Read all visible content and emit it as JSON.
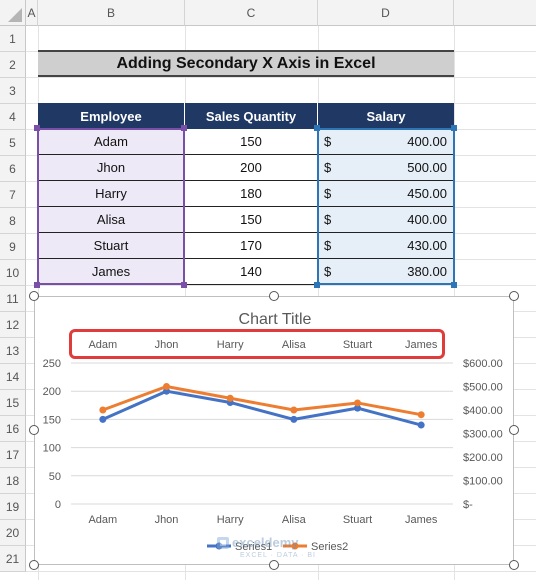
{
  "sheet": {
    "columns": [
      "A",
      "B",
      "C",
      "D"
    ],
    "rows": [
      "1",
      "2",
      "3",
      "4",
      "5",
      "6",
      "7",
      "8",
      "9",
      "10",
      "11",
      "12",
      "13",
      "14",
      "15",
      "16",
      "17",
      "18",
      "19",
      "20",
      "21"
    ],
    "title": "Adding Secondary X Axis in Excel"
  },
  "table": {
    "headers": [
      "Employee",
      "Sales  Quantity",
      "Salary"
    ],
    "rows": [
      {
        "employee": "Adam",
        "qty": "150",
        "cur": "$",
        "salary": "400.00"
      },
      {
        "employee": "Jhon",
        "qty": "200",
        "cur": "$",
        "salary": "500.00"
      },
      {
        "employee": "Harry",
        "qty": "180",
        "cur": "$",
        "salary": "450.00"
      },
      {
        "employee": "Alisa",
        "qty": "150",
        "cur": "$",
        "salary": "400.00"
      },
      {
        "employee": "Stuart",
        "qty": "170",
        "cur": "$",
        "salary": "430.00"
      },
      {
        "employee": "James",
        "qty": "140",
        "cur": "$",
        "salary": "380.00"
      }
    ]
  },
  "colors": {
    "header_bg": "#1f3864",
    "series1": "#4472c4",
    "series2": "#ed7d31",
    "highlight": "#e03c3c",
    "employee_sel": "#7a4fa8",
    "salary_sel": "#2e75b6"
  },
  "chart_data": {
    "type": "line",
    "title": "Chart Title",
    "categories": [
      "Adam",
      "Jhon",
      "Harry",
      "Alisa",
      "Stuart",
      "James"
    ],
    "secondary_x_categories": [
      "Adam",
      "Jhon",
      "Harry",
      "Alisa",
      "Stuart",
      "James"
    ],
    "series": [
      {
        "name": "Series1",
        "values": [
          150,
          200,
          180,
          150,
          170,
          140
        ],
        "axis": "primary"
      },
      {
        "name": "Series2",
        "values": [
          400,
          500,
          450,
          400,
          430,
          380
        ],
        "axis": "secondary"
      }
    ],
    "y_ticks": [
      "0",
      "50",
      "100",
      "150",
      "200",
      "250"
    ],
    "ylim": [
      0,
      250
    ],
    "y2_ticks": [
      "$-",
      "$100.00",
      "$200.00",
      "$300.00",
      "$400.00",
      "$500.00",
      "$600.00"
    ],
    "y2lim": [
      0,
      600
    ],
    "grid": true,
    "legend": "bottom"
  },
  "watermark": {
    "name": "exceldemy",
    "tagline": "EXCEL · DATA · BI"
  }
}
